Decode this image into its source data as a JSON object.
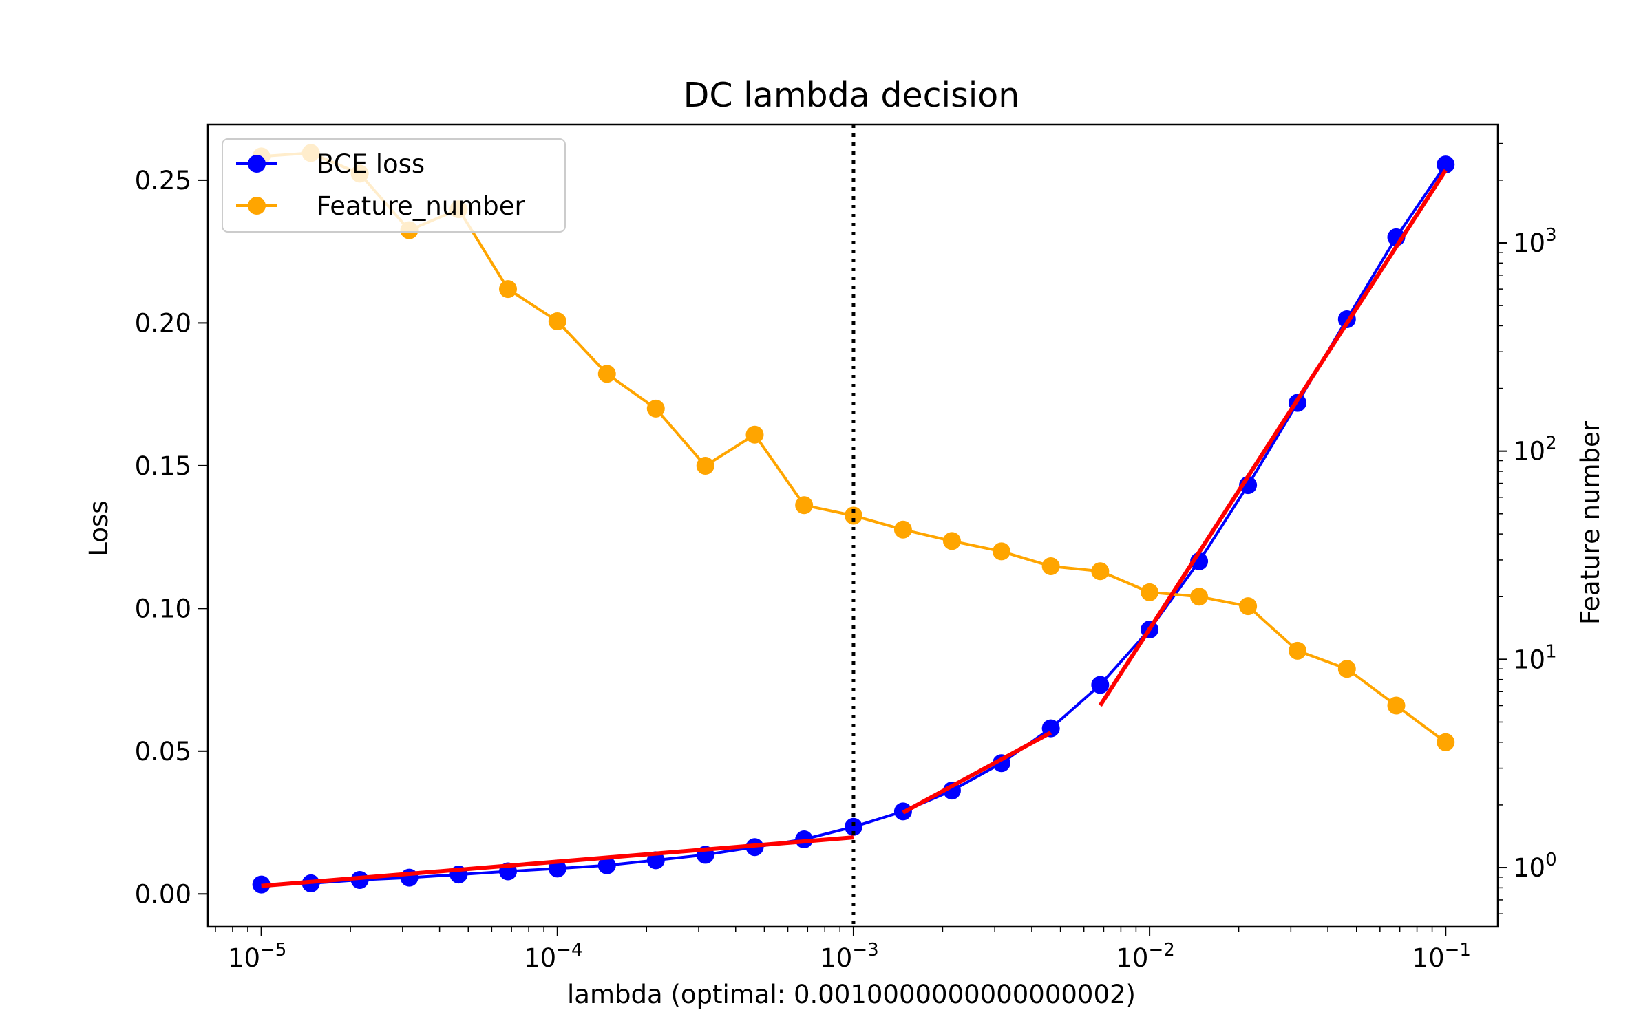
{
  "chart_data": {
    "type": "line",
    "title": "DC lambda decision",
    "xlabel": "lambda (optimal: 0.0010000000000000002)",
    "ylabel": "Loss",
    "y2label": "Feature number",
    "xscale": "log",
    "xlim": [
      6.6e-06,
      0.15
    ],
    "ylim": [
      -0.0115,
      0.2695
    ],
    "y2scale": "log",
    "y2lim": [
      0.52,
      3700
    ],
    "x_ticks": [
      {
        "base": "10",
        "exp": "−5"
      },
      {
        "base": "10",
        "exp": "−4"
      },
      {
        "base": "10",
        "exp": "−3"
      },
      {
        "base": "10",
        "exp": "−2"
      },
      {
        "base": "10",
        "exp": "−1"
      }
    ],
    "y_ticks": [
      "0.00",
      "0.05",
      "0.10",
      "0.15",
      "0.20",
      "0.25"
    ],
    "y2_ticks": [
      {
        "base": "10",
        "exp": "0"
      },
      {
        "base": "10",
        "exp": "1"
      },
      {
        "base": "10",
        "exp": "2"
      },
      {
        "base": "10",
        "exp": "3"
      }
    ],
    "x": [
      1e-05,
      1.47e-05,
      2.15e-05,
      3.16e-05,
      4.64e-05,
      6.81e-05,
      0.0001,
      0.000147,
      0.000215,
      0.000316,
      0.000464,
      0.000681,
      0.001,
      0.00147,
      0.00215,
      0.00316,
      0.00464,
      0.00681,
      0.01,
      0.0147,
      0.0215,
      0.0316,
      0.0464,
      0.0681,
      0.1
    ],
    "series": [
      {
        "name": "BCE loss",
        "axis": "left",
        "color": "#0000ff",
        "values": [
          0.0033,
          0.0037,
          0.0049,
          0.0057,
          0.0068,
          0.0079,
          0.0089,
          0.01,
          0.0118,
          0.0137,
          0.0164,
          0.0191,
          0.0235,
          0.0289,
          0.0362,
          0.0458,
          0.058,
          0.0732,
          0.0926,
          0.1165,
          0.1432,
          0.172,
          0.2013,
          0.23,
          0.2555
        ]
      },
      {
        "name": "Feature_number",
        "axis": "right",
        "color": "#ffa500",
        "values": [
          2600,
          2700,
          2150,
          1150,
          1450,
          600,
          420,
          235,
          160,
          85,
          120,
          55,
          49,
          42,
          37,
          33,
          28,
          26.5,
          21,
          20,
          18,
          11,
          9,
          6,
          4
        ]
      }
    ],
    "fit_lines": [
      {
        "color": "#ff0000",
        "x": [
          1e-05,
          0.001
        ],
        "y": [
          0.0028,
          0.0198
        ]
      },
      {
        "color": "#ff0000",
        "x": [
          0.00147,
          0.00464
        ],
        "y": [
          0.0285,
          0.0565
        ]
      },
      {
        "color": "#ff0000",
        "x": [
          0.00681,
          0.1
        ],
        "y": [
          0.066,
          0.2535
        ]
      }
    ],
    "vline": {
      "x": 0.001,
      "style": "dotted",
      "color": "#000000"
    },
    "legend": {
      "placement": "top-left",
      "entries": [
        "BCE loss",
        "Feature_number"
      ]
    },
    "grid": false
  }
}
